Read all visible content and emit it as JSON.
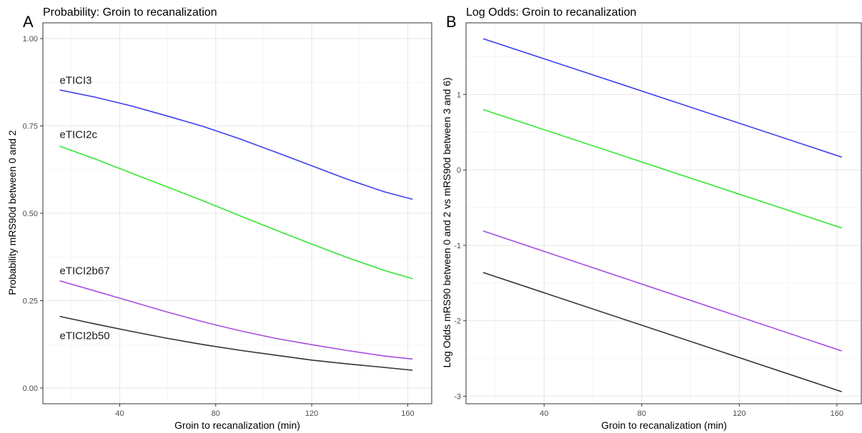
{
  "chart_data": [
    {
      "panel": "A",
      "type": "line",
      "title": "Probability: Groin to recanalization",
      "xlabel": "Groin to recanalization (min)",
      "ylabel": "Probability mRS90d between 0 and 2",
      "xlim": [
        8,
        170
      ],
      "ylim": [
        -0.045,
        1.045
      ],
      "xticks": [
        40,
        80,
        120,
        160
      ],
      "yticks": [
        0,
        0.25,
        0.5,
        0.75,
        1
      ],
      "ytick_labels": [
        "0.00",
        "0.25",
        "0.50",
        "0.75",
        "1.00"
      ],
      "series": [
        {
          "name": "eTICI3",
          "color": "#3d3df0",
          "label_at": [
            15,
            0.87
          ],
          "x": [
            15,
            30,
            45,
            60,
            75,
            90,
            105,
            120,
            135,
            150,
            162
          ],
          "y": [
            0.853,
            0.832,
            0.807,
            0.778,
            0.748,
            0.713,
            0.675,
            0.636,
            0.597,
            0.562,
            0.54
          ]
        },
        {
          "name": "eTICI2c",
          "color": "#33e633",
          "label_at": [
            15,
            0.715
          ],
          "x": [
            15,
            30,
            45,
            60,
            75,
            90,
            105,
            120,
            135,
            150,
            162
          ],
          "y": [
            0.692,
            0.655,
            0.615,
            0.575,
            0.535,
            0.493,
            0.452,
            0.412,
            0.373,
            0.337,
            0.313
          ]
        },
        {
          "name": "eTICI2b67",
          "color": "#a64ddf",
          "label_at": [
            15,
            0.325
          ],
          "x": [
            15,
            30,
            45,
            60,
            75,
            90,
            105,
            120,
            135,
            150,
            162
          ],
          "y": [
            0.307,
            0.277,
            0.247,
            0.217,
            0.189,
            0.164,
            0.142,
            0.124,
            0.107,
            0.092,
            0.083
          ]
        },
        {
          "name": "eTICI2b50",
          "color": "#333333",
          "label_at": [
            15,
            0.14
          ],
          "x": [
            15,
            30,
            45,
            60,
            75,
            90,
            105,
            120,
            135,
            150,
            162
          ],
          "y": [
            0.205,
            0.183,
            0.162,
            0.142,
            0.124,
            0.108,
            0.094,
            0.08,
            0.069,
            0.059,
            0.051
          ]
        }
      ]
    },
    {
      "panel": "B",
      "type": "line",
      "title": "Log Odds: Groin to recanalization",
      "xlabel": "Groin to recanalization (min)",
      "ylabel": "Log Odds mRS90 between 0 and 2 vs mRS90d between 3 and 6)",
      "xlim": [
        8,
        170
      ],
      "ylim": [
        -3.1,
        1.95
      ],
      "xticks": [
        40,
        80,
        120,
        160
      ],
      "yticks": [
        -3,
        -2,
        -1,
        0,
        1
      ],
      "ytick_labels": [
        "-3",
        "-2",
        "-1",
        "0",
        "1"
      ],
      "series": [
        {
          "color": "#3d3df0",
          "x": [
            15,
            162
          ],
          "y": [
            1.74,
            0.17
          ]
        },
        {
          "color": "#33e633",
          "x": [
            15,
            162
          ],
          "y": [
            0.8,
            -0.77
          ]
        },
        {
          "color": "#a64ddf",
          "x": [
            15,
            162
          ],
          "y": [
            -0.81,
            -2.4
          ]
        },
        {
          "color": "#333333",
          "x": [
            15,
            162
          ],
          "y": [
            -1.36,
            -2.94
          ]
        }
      ]
    }
  ]
}
